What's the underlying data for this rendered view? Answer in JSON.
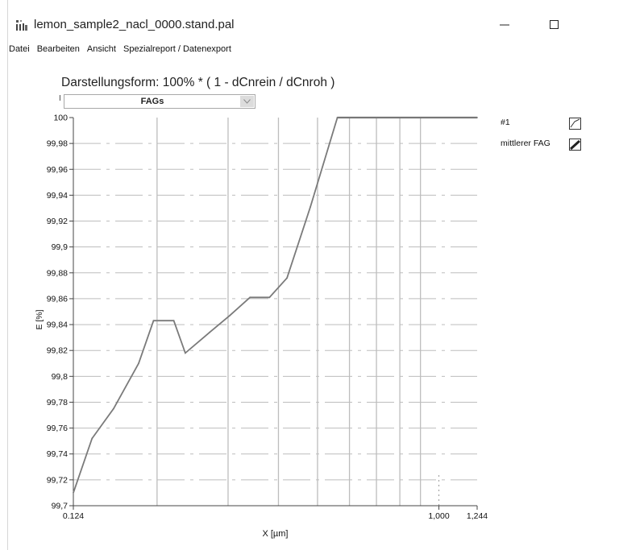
{
  "window": {
    "title": "lemon_sample2_nacl_0000.stand.pal"
  },
  "menu": {
    "items": [
      "Datei",
      "Bearbeiten",
      "Ansicht",
      "Spezialreport / Datenexport"
    ]
  },
  "header": {
    "plot_title": "Darstellungsform: 100% * ( 1 - dCnrein / dCnroh )",
    "dropdown_value": "FAGs",
    "dropdown_fragment": "I"
  },
  "legend": {
    "entries": [
      "#1",
      "mittlerer FAG"
    ]
  },
  "colors": {
    "curve": "#7a7a7a",
    "grid": "#bdbdbd",
    "accent": "#777777"
  },
  "chart_data": {
    "type": "line",
    "xlabel": "X [µm]",
    "ylabel": "E [%]",
    "xscale": "log",
    "xlim": [
      0.124,
      1.244
    ],
    "ylim": [
      99.7,
      100
    ],
    "xtick_labels": [
      "0.124",
      "1,000",
      "1,244"
    ],
    "ytick_labels": [
      "99,7",
      "99,72",
      "99,74",
      "99,76",
      "99,78",
      "99,8",
      "99,82",
      "99,84",
      "99,86",
      "99,88",
      "99,9",
      "99,92",
      "99,94",
      "99,96",
      "99,98",
      "100"
    ],
    "series": [
      {
        "name": "mittlerer FAG",
        "x": [
          0.124,
          0.138,
          0.156,
          0.18,
          0.196,
          0.22,
          0.235,
          0.27,
          0.303,
          0.34,
          0.38,
          0.42,
          0.48,
          0.56,
          0.7,
          1.244
        ],
        "y": [
          99.71,
          99.752,
          99.775,
          99.81,
          99.843,
          99.843,
          99.818,
          99.834,
          99.847,
          99.861,
          99.861,
          99.876,
          99.931,
          100.0,
          100.0,
          100.0
        ]
      }
    ],
    "grid": true,
    "legend_position": "right"
  }
}
